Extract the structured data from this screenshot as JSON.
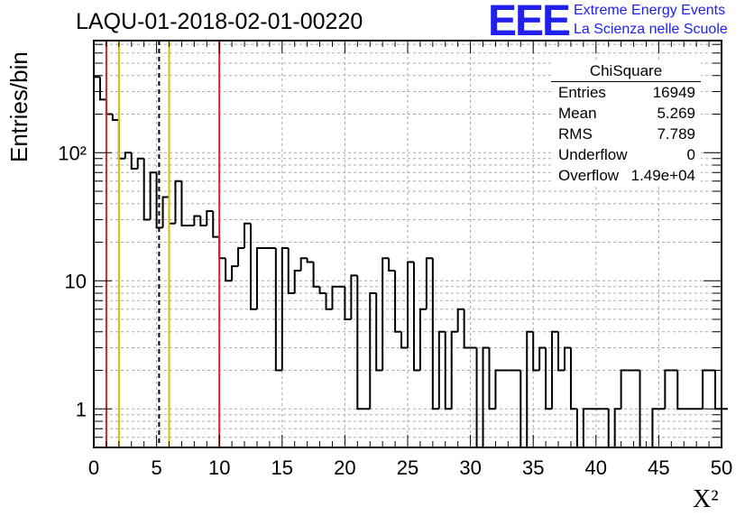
{
  "header": {
    "title": "LAQU-01-2018-02-01-00220",
    "logo_text": "EEE",
    "logo_line1": "Extreme Energy Events",
    "logo_line2": "La Scienza nelle Scuole"
  },
  "stats": {
    "name": "ChiSquare",
    "rows": [
      {
        "key": "Entries",
        "value": "16949"
      },
      {
        "key": "Mean",
        "value": "5.269"
      },
      {
        "key": "RMS",
        "value": "7.789"
      },
      {
        "key": "Underflow",
        "value": "0"
      },
      {
        "key": "Overflow",
        "value": "1.49e+04"
      }
    ]
  },
  "colors": {
    "histogram": "#000000",
    "red_lines": "#dd2222",
    "yellow_lines": "#e8b800",
    "dashed_line": "#000000",
    "grid": "#aaaaaa",
    "logo": "#2020ee"
  },
  "chart_data": {
    "type": "bar",
    "histogram": true,
    "xlabel": "X²",
    "ylabel": "Entries/bin",
    "xlim": [
      0,
      50
    ],
    "ylim": [
      0.5,
      750
    ],
    "yscale": "log",
    "grid": true,
    "bin_width": 0.5,
    "x_ticks": [
      "0",
      "5",
      "10",
      "15",
      "20",
      "25",
      "30",
      "35",
      "40",
      "45",
      "50"
    ],
    "y_ticks": [
      {
        "value": 1,
        "label": "1"
      },
      {
        "value": 10,
        "label": "10"
      },
      {
        "value": 100,
        "label": "10²"
      }
    ],
    "values": [
      390,
      260,
      200,
      180,
      90,
      100,
      75,
      90,
      30,
      70,
      26,
      45,
      28,
      60,
      27,
      27,
      32,
      27,
      35,
      22,
      15,
      10,
      13,
      18,
      28,
      6,
      18,
      18,
      18,
      2,
      18,
      8,
      12,
      15,
      14,
      9,
      8,
      6,
      9,
      9,
      5,
      11,
      1,
      1,
      8,
      2,
      15,
      12,
      4,
      3,
      14,
      2,
      6,
      15,
      1,
      4,
      1,
      4,
      6,
      3,
      3,
      0.45,
      3,
      1,
      2,
      2,
      2,
      2,
      0.45,
      4,
      2,
      3,
      1,
      4,
      2,
      3,
      1,
      0.45,
      1,
      1,
      1,
      1,
      0.45,
      1,
      2,
      2,
      2,
      0.45,
      0.45,
      1,
      1,
      2,
      2,
      1,
      1,
      1,
      1,
      2,
      2,
      1,
      1
    ],
    "vertical_lines": [
      {
        "x": 1,
        "style": "red"
      },
      {
        "x": 2,
        "style": "yellow"
      },
      {
        "x": 5.2,
        "style": "dashed"
      },
      {
        "x": 6,
        "style": "yellow"
      },
      {
        "x": 10,
        "style": "red"
      }
    ]
  }
}
